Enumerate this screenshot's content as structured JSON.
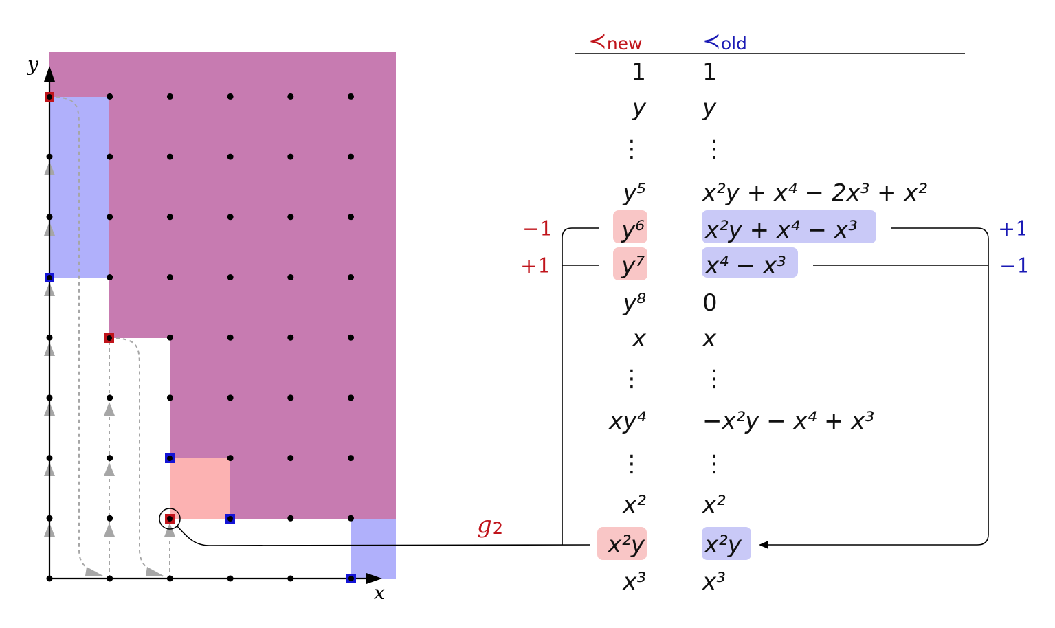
{
  "plot": {
    "axis_x": "x",
    "axis_y": "y",
    "g2_label": "g",
    "g2_sub": "2"
  },
  "table": {
    "header_new_sym": "≺",
    "header_new_sub": "new",
    "header_old_sym": "≺",
    "header_old_sub": "old",
    "colors": {
      "red": "#c0141b",
      "blue": "#1a1ab5",
      "red_hl": "#f9c6c6",
      "blue_hl": "#c9c9f7"
    },
    "rows": [
      {
        "new": "1",
        "old": "1"
      },
      {
        "new": "y",
        "old": "y"
      },
      {
        "new": "⋮",
        "old": "⋮"
      },
      {
        "new": "y⁵",
        "old": "x²y + x⁴ − 2x³ + x²"
      },
      {
        "new": "y⁶",
        "old": "x²y + x⁴ − x³"
      },
      {
        "new": "y⁷",
        "old": "x⁴ − x³"
      },
      {
        "new": "y⁸",
        "old": "0"
      },
      {
        "new": "x",
        "old": "x"
      },
      {
        "new": "⋮",
        "old": "⋮"
      },
      {
        "new": "xy⁴",
        "old": "−x²y − x⁴ + x³"
      },
      {
        "new": "⋮",
        "old": "⋮"
      },
      {
        "new": "x²",
        "old": "x²"
      },
      {
        "new": "x²y",
        "old": "x²y"
      },
      {
        "new": "x³",
        "old": "x³"
      }
    ],
    "left_labels": {
      "row_y6": "−1",
      "row_y7": "+1"
    },
    "right_labels": {
      "row_y6": "+1",
      "row_y7": "−1"
    }
  }
}
